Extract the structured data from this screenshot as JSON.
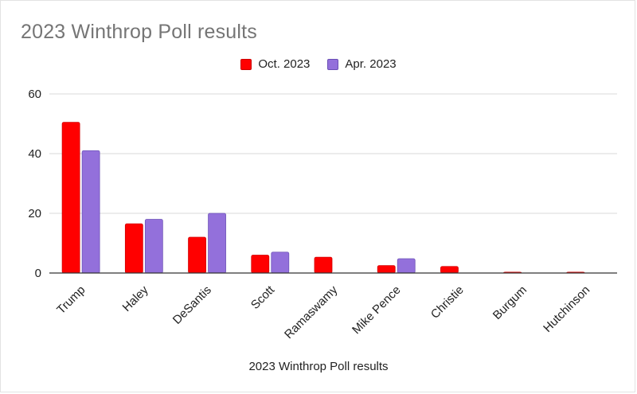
{
  "chart_data": {
    "type": "bar",
    "title": "2023 Winthrop Poll results",
    "xlabel": "2023 Winthrop Poll results",
    "ylabel": "",
    "ylim": [
      0,
      60
    ],
    "yticks": [
      0,
      20,
      40,
      60
    ],
    "grid": true,
    "legend_position": "top-center",
    "categories": [
      "Trump",
      "Haley",
      "DeSantis",
      "Scott",
      "Ramaswamy",
      "Mike Pence",
      "Christie",
      "Burgum",
      "Hutchinson"
    ],
    "series": [
      {
        "name": "Oct. 2023",
        "color": "#ff0000",
        "values": [
          50.5,
          16.5,
          12,
          6,
          5.3,
          2.5,
          2.2,
          0.3,
          0.3
        ]
      },
      {
        "name": "Apr. 2023",
        "color": "#9370db",
        "values": [
          41,
          18,
          20,
          7,
          0,
          4.8,
          0,
          0,
          0
        ]
      }
    ]
  }
}
